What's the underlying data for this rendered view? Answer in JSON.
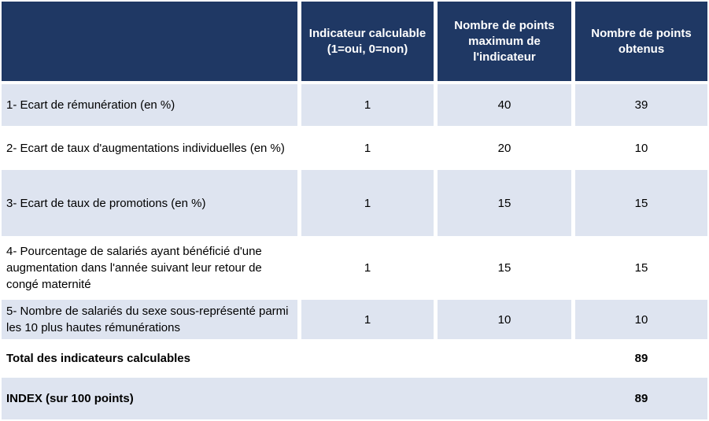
{
  "colors": {
    "header_bg": "#1f3864",
    "header_text": "#ffffff",
    "row_alt_bg": "#dee4f0",
    "row_plain_bg": "#ffffff",
    "body_text": "#000000"
  },
  "table": {
    "columns": [
      {
        "label": ""
      },
      {
        "label": "Indicateur calculable (1=oui, 0=non)"
      },
      {
        "label": "Nombre de points maximum de l'indicateur"
      },
      {
        "label": "Nombre de points obtenus"
      }
    ],
    "rows": [
      {
        "label": "1- Ecart de rémunération (en %)",
        "calculable": "1",
        "max_points": "40",
        "points_obtenus": "39"
      },
      {
        "label": "2- Ecart de taux d'augmentations individuelles (en %)",
        "calculable": "1",
        "max_points": "20",
        "points_obtenus": "10"
      },
      {
        "label": "3- Ecart de taux de promotions (en %)",
        "calculable": "1",
        "max_points": "15",
        "points_obtenus": "15"
      },
      {
        "label": "4- Pourcentage de salariés ayant bénéficié d'une augmentation dans l'année suivant leur retour de congé maternité",
        "calculable": "1",
        "max_points": "15",
        "points_obtenus": "15"
      },
      {
        "label": "5- Nombre de salariés du sexe sous-représenté parmi les 10 plus hautes rémunérations",
        "calculable": "1",
        "max_points": "10",
        "points_obtenus": "10"
      }
    ],
    "summary": [
      {
        "label": "Total des indicateurs calculables",
        "value": "89"
      },
      {
        "label": "INDEX (sur 100 points)",
        "value": "89"
      }
    ]
  }
}
